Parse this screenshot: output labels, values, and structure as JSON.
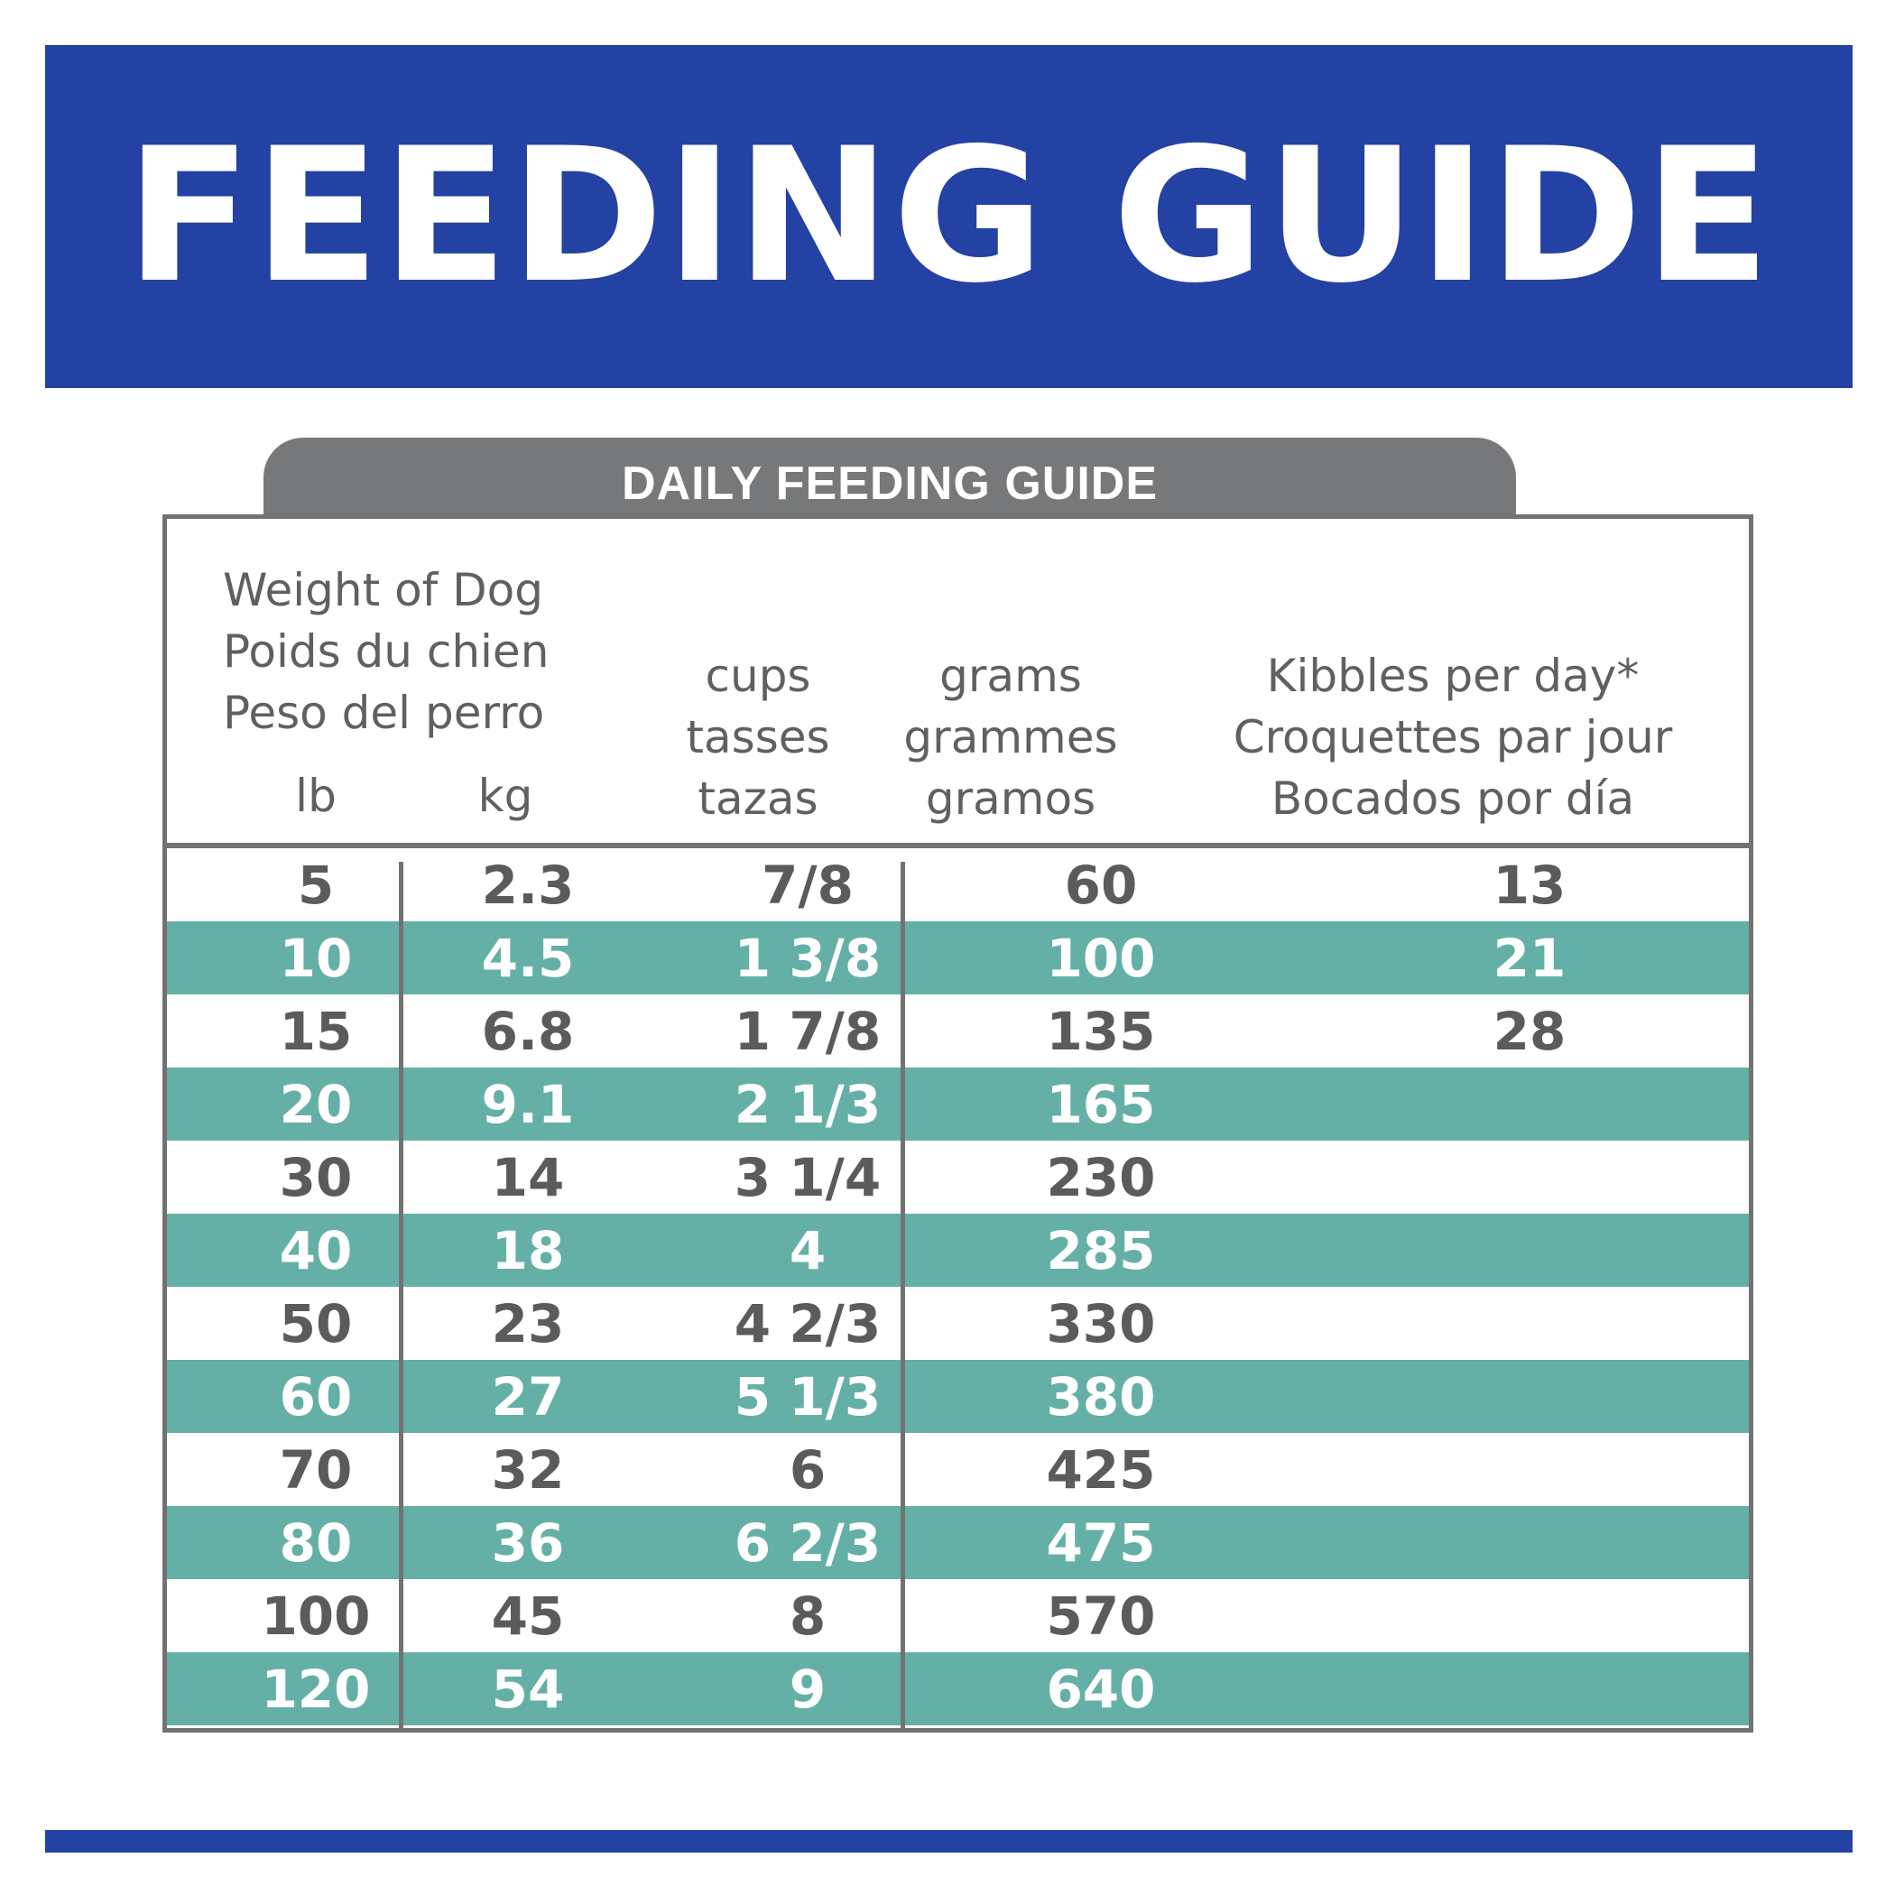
{
  "banner": {
    "title": "FEEDING GUIDE"
  },
  "table": {
    "tab_label": "DAILY FEEDING GUIDE",
    "header": {
      "weight_lines": [
        "Weight of Dog",
        "Poids du chien",
        "Peso del perro"
      ],
      "lb": "lb",
      "kg": "kg",
      "cups_lines": [
        "cups",
        "tasses",
        "tazas"
      ],
      "grams_lines": [
        "grams",
        "grammes",
        "gramos"
      ],
      "kibbles_lines": [
        "Kibbles per day*",
        "Croquettes par jour",
        "Bocados por día"
      ]
    },
    "rows": [
      {
        "lb": "5",
        "kg": "2.3",
        "cups": "7/8",
        "grams": "60",
        "kibbles": "13"
      },
      {
        "lb": "10",
        "kg": "4.5",
        "cups": "1 3/8",
        "grams": "100",
        "kibbles": "21"
      },
      {
        "lb": "15",
        "kg": "6.8",
        "cups": "1 7/8",
        "grams": "135",
        "kibbles": "28"
      },
      {
        "lb": "20",
        "kg": "9.1",
        "cups": "2 1/3",
        "grams": "165",
        "kibbles": ""
      },
      {
        "lb": "30",
        "kg": "14",
        "cups": "3 1/4",
        "grams": "230",
        "kibbles": ""
      },
      {
        "lb": "40",
        "kg": "18",
        "cups": "4",
        "grams": "285",
        "kibbles": ""
      },
      {
        "lb": "50",
        "kg": "23",
        "cups": "4 2/3",
        "grams": "330",
        "kibbles": ""
      },
      {
        "lb": "60",
        "kg": "27",
        "cups": "5 1/3",
        "grams": "380",
        "kibbles": ""
      },
      {
        "lb": "70",
        "kg": "32",
        "cups": "6",
        "grams": "425",
        "kibbles": ""
      },
      {
        "lb": "80",
        "kg": "36",
        "cups": "6 2/3",
        "grams": "475",
        "kibbles": ""
      },
      {
        "lb": "100",
        "kg": "45",
        "cups": "8",
        "grams": "570",
        "kibbles": ""
      },
      {
        "lb": "120",
        "kg": "54",
        "cups": "9",
        "grams": "640",
        "kibbles": ""
      }
    ]
  },
  "colors": {
    "banner_blue": "#2441a4",
    "row_teal": "#64b0a6",
    "tab_gray": "#77787a",
    "text_gray": "#5a5b5d"
  }
}
